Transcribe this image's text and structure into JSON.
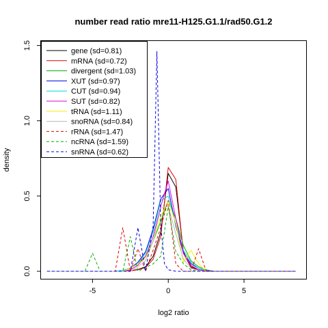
{
  "chart_data": {
    "type": "line",
    "title": "number read ratio mre11-H125.G1.1/rad50.G1.2",
    "xlabel": "log2 ratio",
    "ylabel": "density",
    "xlim": [
      -8.4,
      9.1
    ],
    "ylim": [
      -0.05,
      1.53
    ],
    "x_ticks": [
      -5,
      0,
      5
    ],
    "x_tick_labels": [
      "-5",
      "0",
      "5"
    ],
    "y_ticks": [
      0.0,
      0.5,
      1.0,
      1.5
    ],
    "y_tick_labels": [
      "0.0",
      "0.5",
      "1.0",
      "1.5"
    ],
    "grid": false,
    "legend_position": "top-left",
    "series": [
      {
        "name": "gene (sd=0.81)",
        "color": "#000000",
        "dash": "solid",
        "x": [
          -8,
          -3,
          -2.5,
          -2,
          -1.5,
          -1,
          -0.5,
          0,
          0.5,
          1,
          1.5,
          2,
          2.5,
          3,
          8.4
        ],
        "y": [
          0,
          0,
          0.003,
          0.012,
          0.03,
          0.1,
          0.26,
          0.65,
          0.56,
          0.13,
          0.03,
          0.01,
          0.003,
          0,
          0
        ]
      },
      {
        "name": "mRNA (sd=0.72)",
        "color": "#e00000",
        "dash": "solid",
        "x": [
          -8,
          -3,
          -2.5,
          -2,
          -1.5,
          -1,
          -0.5,
          0,
          0.5,
          1,
          1.5,
          2,
          2.5,
          3,
          8.4
        ],
        "y": [
          0,
          0,
          0.002,
          0.01,
          0.025,
          0.08,
          0.23,
          0.69,
          0.61,
          0.12,
          0.025,
          0.008,
          0.002,
          0,
          0
        ]
      },
      {
        "name": "divergent (sd=1.03)",
        "color": "#00b000",
        "dash": "solid",
        "x": [
          -8,
          -3.5,
          -3,
          -2.5,
          -2,
          -1.5,
          -1,
          -0.5,
          0,
          0.5,
          1,
          1.5,
          2,
          2.5,
          3,
          8.4
        ],
        "y": [
          0,
          0,
          0.005,
          0.02,
          0.05,
          0.1,
          0.2,
          0.33,
          0.47,
          0.35,
          0.17,
          0.07,
          0.03,
          0.01,
          0,
          0
        ]
      },
      {
        "name": "XUT (sd=0.97)",
        "color": "#0000e0",
        "dash": "solid",
        "x": [
          -8,
          -3.5,
          -3,
          -2.5,
          -2,
          -1.5,
          -1,
          -0.5,
          0,
          0.5,
          1,
          1.5,
          2,
          2.5,
          3,
          8.4
        ],
        "y": [
          0,
          0,
          0.005,
          0.02,
          0.06,
          0.13,
          0.28,
          0.48,
          0.55,
          0.3,
          0.12,
          0.05,
          0.02,
          0.005,
          0,
          0
        ]
      },
      {
        "name": "CUT (sd=0.94)",
        "color": "#00d8d8",
        "dash": "solid",
        "x": [
          -8,
          -3.5,
          -3,
          -2.5,
          -2,
          -1.5,
          -1,
          -0.5,
          0,
          0.5,
          1,
          1.5,
          2,
          2.5,
          3,
          8.4
        ],
        "y": [
          0,
          0,
          0.005,
          0.02,
          0.05,
          0.12,
          0.26,
          0.47,
          0.5,
          0.31,
          0.14,
          0.06,
          0.02,
          0.005,
          0,
          0
        ]
      },
      {
        "name": "SUT (sd=0.82)",
        "color": "#e000e0",
        "dash": "solid",
        "x": [
          -8,
          -3,
          -2.5,
          -2,
          -1.5,
          -1,
          -0.5,
          0,
          0.5,
          1,
          1.5,
          2,
          2.5,
          3,
          8.4
        ],
        "y": [
          0,
          0,
          0.01,
          0.04,
          0.1,
          0.23,
          0.43,
          0.6,
          0.35,
          0.12,
          0.04,
          0.01,
          0.003,
          0,
          0
        ]
      },
      {
        "name": "tRNA (sd=1.11)",
        "color": "#f0f000",
        "dash": "solid",
        "x": [
          -8,
          -3,
          -2.5,
          -2,
          -1.5,
          -1,
          -0.5,
          0,
          0.5,
          1,
          1.5,
          2,
          2.5,
          8.4
        ],
        "y": [
          0,
          0,
          0.02,
          0.05,
          0.09,
          0.2,
          0.36,
          0.47,
          0.32,
          0.06,
          0.14,
          0.05,
          0,
          0
        ]
      },
      {
        "name": "snoRNA (sd=0.84)",
        "color": "#b8b8b8",
        "dash": "solid",
        "x": [
          -8,
          -2.5,
          -2,
          -1.5,
          -1,
          -0.5,
          0,
          0.5,
          1,
          1.5,
          2,
          2.5,
          8.4
        ],
        "y": [
          0,
          0,
          0.03,
          0.07,
          0.2,
          0.42,
          0.43,
          0.25,
          0.08,
          0.02,
          0.005,
          0,
          0
        ]
      },
      {
        "name": "rRNA (sd=1.47)",
        "color": "#e00000",
        "dash": "dashed",
        "x": [
          -8,
          -3.5,
          -3,
          -2.5,
          -2,
          -1.5,
          -1,
          -0.5,
          0,
          0.5,
          1,
          1.5,
          2,
          2.5,
          8.4
        ],
        "y": [
          0,
          0,
          0.29,
          0,
          0.15,
          0,
          0.14,
          0.29,
          0.47,
          0.05,
          0,
          0,
          0.15,
          0,
          0
        ]
      },
      {
        "name": "ncRNA (sd=1.59)",
        "color": "#00b000",
        "dash": "dashed",
        "x": [
          -8,
          -5.5,
          -5,
          -4.5,
          -3,
          -2.5,
          -2,
          -1,
          -0.5,
          0,
          0.5,
          1,
          1.5,
          2,
          8.4
        ],
        "y": [
          0,
          0,
          0.12,
          0,
          0,
          0.23,
          0,
          0.05,
          0.1,
          0.43,
          0.13,
          0.05,
          0.01,
          0,
          0
        ]
      },
      {
        "name": "snRNA (sd=0.62)",
        "color": "#0000e0",
        "dash": "dashed",
        "x": [
          -8,
          -2.5,
          -2,
          -1.5,
          -1,
          -0.75,
          -0.5,
          -0.25,
          0,
          0.5,
          1,
          8.4
        ],
        "y": [
          0,
          0,
          0.29,
          0,
          0.3,
          1.46,
          0.31,
          0.05,
          0.01,
          0,
          0,
          0
        ]
      }
    ]
  }
}
